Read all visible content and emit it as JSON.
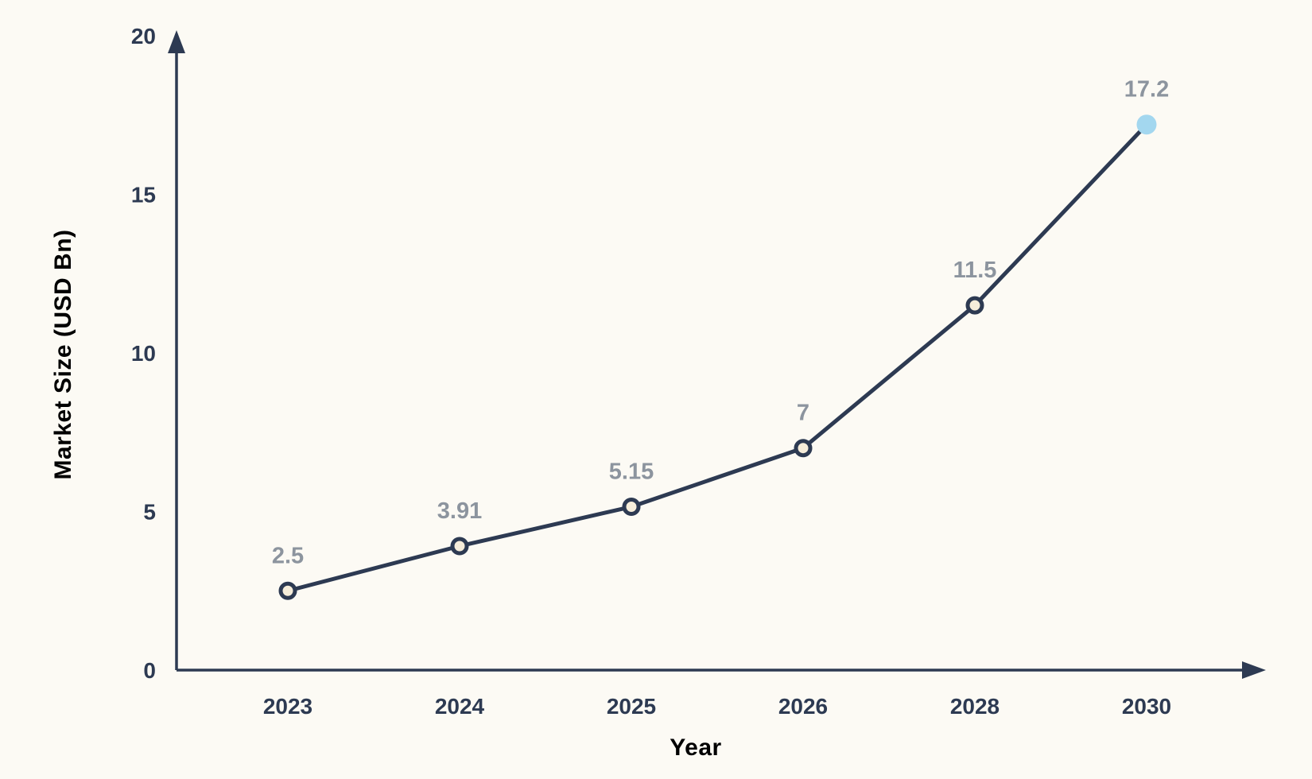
{
  "colors": {
    "background": "#fcfaf4",
    "axis": "#2d3a52",
    "line": "#2d3a52",
    "tick_label": "#2d3a52",
    "data_label": "#8c949e",
    "point_fill": "#f6edda",
    "point_stroke": "#2d3a52",
    "highlight_point_fill": "#a3d7ef"
  },
  "chart_data": {
    "type": "line",
    "title": "",
    "xlabel": "Year",
    "ylabel": "Market Size (USD Bn)",
    "categories": [
      "2023",
      "2024",
      "2025",
      "2026",
      "2028",
      "2030"
    ],
    "series": [
      {
        "name": "Market Size (USD Bn)",
        "values": [
          2.5,
          3.91,
          5.15,
          7,
          11.5,
          17.2
        ]
      }
    ],
    "point_labels": [
      "2.5",
      "3.91",
      "5.15",
      "7",
      "11.5",
      "17.2"
    ],
    "y_ticks": [
      0,
      5,
      10,
      15,
      20
    ],
    "ylim": [
      0,
      20
    ],
    "grid": false,
    "legend": false,
    "highlight_last_point": true
  }
}
